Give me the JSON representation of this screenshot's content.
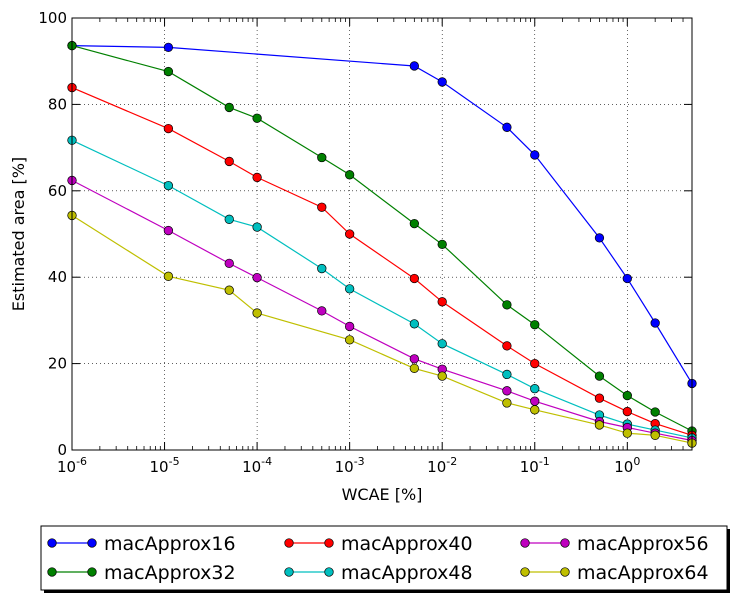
{
  "chart_data": {
    "type": "line",
    "xlabel": "WCAE [%]",
    "ylabel": "Estimated area [%]",
    "xscale": "log",
    "xlim": [
      1e-06,
      5
    ],
    "ylim": [
      0,
      100
    ],
    "grid": true,
    "legend_position": "below",
    "x_ticks": [
      {
        "value": 1e-06,
        "base": "10",
        "exp": "-6"
      },
      {
        "value": 1e-05,
        "base": "10",
        "exp": "-5"
      },
      {
        "value": 0.0001,
        "base": "10",
        "exp": "-4"
      },
      {
        "value": 0.001,
        "base": "10",
        "exp": "-3"
      },
      {
        "value": 0.01,
        "base": "10",
        "exp": "-2"
      },
      {
        "value": 0.1,
        "base": "10",
        "exp": "-1"
      },
      {
        "value": 1,
        "base": "10",
        "exp": "0"
      }
    ],
    "y_ticks": [
      {
        "value": 0,
        "label": "0"
      },
      {
        "value": 20,
        "label": "20"
      },
      {
        "value": 40,
        "label": "40"
      },
      {
        "value": 60,
        "label": "60"
      },
      {
        "value": 80,
        "label": "80"
      },
      {
        "value": 100,
        "label": "100"
      }
    ],
    "series": [
      {
        "name": "macApprox16",
        "color": "#0000ff",
        "points": [
          [
            1e-06,
            93.6
          ],
          [
            1.1e-05,
            93.2
          ],
          [
            0.005,
            88.9
          ],
          [
            0.01,
            85.2
          ],
          [
            0.05,
            74.7
          ],
          [
            0.1,
            68.3
          ],
          [
            0.5,
            49.1
          ],
          [
            1,
            39.7
          ],
          [
            2,
            29.4
          ],
          [
            5,
            15.4
          ]
        ]
      },
      {
        "name": "macApprox32",
        "color": "#008000",
        "points": [
          [
            1e-06,
            93.6
          ],
          [
            1.1e-05,
            87.6
          ],
          [
            5e-05,
            79.3
          ],
          [
            0.0001,
            76.8
          ],
          [
            0.0005,
            67.7
          ],
          [
            0.001,
            63.7
          ],
          [
            0.005,
            52.4
          ],
          [
            0.01,
            47.6
          ],
          [
            0.05,
            33.6
          ],
          [
            0.1,
            29.0
          ],
          [
            0.5,
            17.1
          ],
          [
            1,
            12.6
          ],
          [
            2,
            8.8
          ],
          [
            5,
            4.4
          ]
        ]
      },
      {
        "name": "macApprox40",
        "color": "#ff0000",
        "points": [
          [
            1e-06,
            83.9
          ],
          [
            1.1e-05,
            74.4
          ],
          [
            5e-05,
            66.8
          ],
          [
            0.0001,
            63.1
          ],
          [
            0.0005,
            56.2
          ],
          [
            0.001,
            50.0
          ],
          [
            0.005,
            39.7
          ],
          [
            0.01,
            34.3
          ],
          [
            0.05,
            24.1
          ],
          [
            0.1,
            20.0
          ],
          [
            0.5,
            12.0
          ],
          [
            1,
            8.9
          ],
          [
            2,
            6.1
          ],
          [
            5,
            3.4
          ]
        ]
      },
      {
        "name": "macApprox48",
        "color": "#00bfbf",
        "points": [
          [
            1e-06,
            71.7
          ],
          [
            1.1e-05,
            61.2
          ],
          [
            5e-05,
            53.4
          ],
          [
            0.0001,
            51.6
          ],
          [
            0.0005,
            42.0
          ],
          [
            0.001,
            37.3
          ],
          [
            0.005,
            29.2
          ],
          [
            0.01,
            24.6
          ],
          [
            0.05,
            17.5
          ],
          [
            0.1,
            14.2
          ],
          [
            0.5,
            8.1
          ],
          [
            1,
            6.0
          ],
          [
            2,
            4.6
          ],
          [
            5,
            2.8
          ]
        ]
      },
      {
        "name": "macApprox56",
        "color": "#bf00bf",
        "points": [
          [
            1e-06,
            62.4
          ],
          [
            1.1e-05,
            50.8
          ],
          [
            5e-05,
            43.2
          ],
          [
            0.0001,
            39.9
          ],
          [
            0.0005,
            32.2
          ],
          [
            0.001,
            28.6
          ],
          [
            0.005,
            21.1
          ],
          [
            0.01,
            18.7
          ],
          [
            0.05,
            13.7
          ],
          [
            0.1,
            11.3
          ],
          [
            0.5,
            6.6
          ],
          [
            1,
            5.2
          ],
          [
            2,
            3.9
          ],
          [
            5,
            2.2
          ]
        ]
      },
      {
        "name": "macApprox64",
        "color": "#bfbf00",
        "points": [
          [
            1e-06,
            54.3
          ],
          [
            1.1e-05,
            40.2
          ],
          [
            5e-05,
            37.0
          ],
          [
            0.0001,
            31.7
          ],
          [
            0.001,
            25.5
          ],
          [
            0.005,
            18.9
          ],
          [
            0.01,
            17.1
          ],
          [
            0.05,
            10.9
          ],
          [
            0.1,
            9.3
          ],
          [
            0.5,
            5.8
          ],
          [
            1,
            3.9
          ],
          [
            2,
            3.4
          ],
          [
            5,
            1.6
          ]
        ]
      }
    ]
  }
}
